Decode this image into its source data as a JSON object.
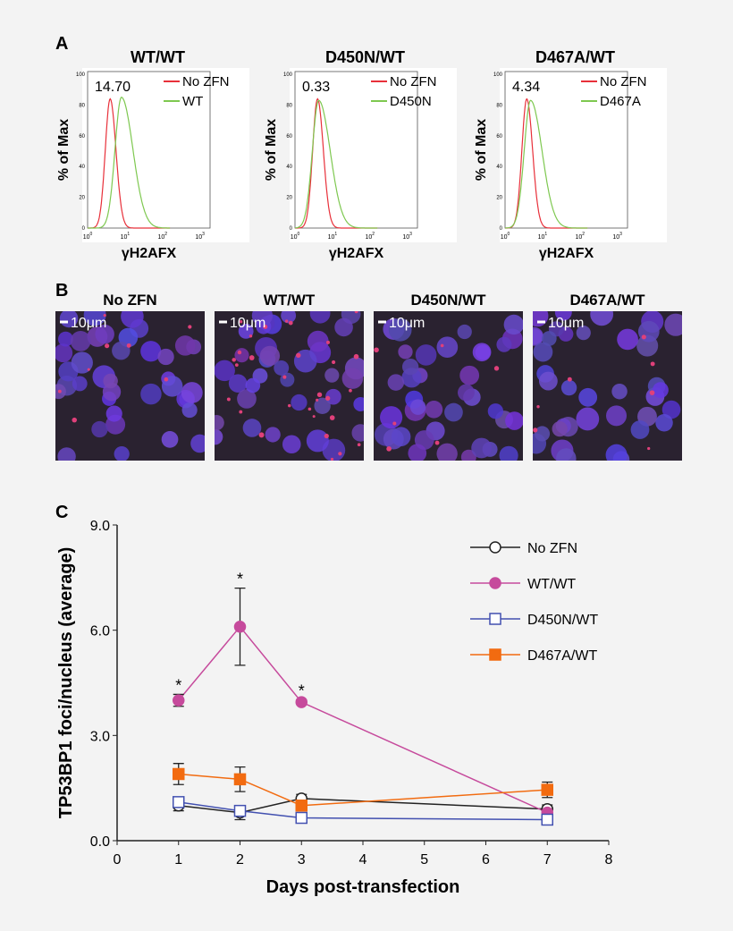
{
  "panel_labels": {
    "a": "A",
    "b": "B",
    "c": "C"
  },
  "chart_data": [
    {
      "type": "line",
      "panel": "A",
      "title": "WT/WT",
      "xlabel": "γH2AFX",
      "ylabel": "% of Max",
      "x_scale": "log",
      "xticks": [
        "10^0",
        "10^1",
        "10^2",
        "10^3"
      ],
      "yticks": [
        0,
        20,
        40,
        60,
        80,
        100
      ],
      "ylim": [
        0,
        100
      ],
      "annotation": "14.70",
      "series": [
        {
          "name": "No ZFN",
          "color": "#e8303a",
          "peak_x": 4,
          "peak_y": 84
        },
        {
          "name": "WT",
          "color": "#7ec850",
          "peak_x": 8,
          "peak_y": 85
        }
      ]
    },
    {
      "type": "line",
      "panel": "A",
      "title": "D450N/WT",
      "xlabel": "γH2AFX",
      "ylabel": "% of Max",
      "x_scale": "log",
      "xticks": [
        "10^0",
        "10^1",
        "10^2",
        "10^3"
      ],
      "yticks": [
        0,
        20,
        40,
        60,
        80,
        100
      ],
      "ylim": [
        0,
        100
      ],
      "annotation": "0.33",
      "series": [
        {
          "name": "No ZFN",
          "color": "#e8303a",
          "peak_x": 4,
          "peak_y": 84
        },
        {
          "name": "D450N",
          "color": "#7ec850",
          "peak_x": 4.3,
          "peak_y": 83
        }
      ]
    },
    {
      "type": "line",
      "panel": "A",
      "title": "D467A/WT",
      "xlabel": "γH2AFX",
      "ylabel": "% of Max",
      "x_scale": "log",
      "xticks": [
        "10^0",
        "10^1",
        "10^2",
        "10^3"
      ],
      "yticks": [
        0,
        20,
        40,
        60,
        80,
        100
      ],
      "ylim": [
        0,
        100
      ],
      "annotation": "4.34",
      "series": [
        {
          "name": "No ZFN",
          "color": "#e8303a",
          "peak_x": 3.8,
          "peak_y": 84
        },
        {
          "name": "D467A",
          "color": "#7ec850",
          "peak_x": 4.8,
          "peak_y": 83
        }
      ]
    },
    {
      "type": "line",
      "panel": "C",
      "xlabel": "Days post-transfection",
      "ylabel": "TP53BP1 foci/nucleus (average)",
      "xlim": [
        0,
        8
      ],
      "ylim": [
        0,
        9
      ],
      "xticks": [
        "0",
        "1",
        "2",
        "3",
        "4",
        "5",
        "6",
        "7",
        "8"
      ],
      "yticks": [
        "0.0",
        "3.0",
        "6.0",
        "9.0"
      ],
      "legend": "top-right",
      "x": [
        1,
        2,
        3,
        7
      ],
      "series": [
        {
          "name": "No ZFN",
          "color": "#222222",
          "marker": "open-circle",
          "values": [
            1.0,
            0.8,
            1.2,
            0.9
          ],
          "errors": [
            0.15,
            0.2,
            0.12,
            0.12
          ]
        },
        {
          "name": "WT/WT",
          "color": "#c64a9c",
          "marker": "filled-circle",
          "values": [
            4.0,
            6.1,
            3.95,
            0.8
          ],
          "errors": [
            0.17,
            1.1,
            0.06,
            0.1
          ]
        },
        {
          "name": "D450N/WT",
          "color": "#4250b0",
          "marker": "open-square",
          "values": [
            1.1,
            0.85,
            0.65,
            0.6
          ],
          "errors": [
            0.08,
            0.1,
            0.05,
            0.05
          ]
        },
        {
          "name": "D467A/WT",
          "color": "#f26b10",
          "marker": "filled-square",
          "values": [
            1.9,
            1.75,
            1.0,
            1.45
          ],
          "errors": [
            0.3,
            0.35,
            0.15,
            0.22
          ]
        }
      ],
      "annotations": [
        {
          "x": 1,
          "text": "*"
        },
        {
          "x": 2,
          "text": "*"
        },
        {
          "x": 3,
          "text": "*"
        }
      ]
    }
  ],
  "micrographs": [
    {
      "title": "No ZFN",
      "scale_bar": "10μm",
      "foci": 8
    },
    {
      "title": "WT/WT",
      "scale_bar": "10μm",
      "foci": 30
    },
    {
      "title": "D450N/WT",
      "scale_bar": "10μm",
      "foci": 6
    },
    {
      "title": "D467A/WT",
      "scale_bar": "10μm",
      "foci": 7
    }
  ]
}
